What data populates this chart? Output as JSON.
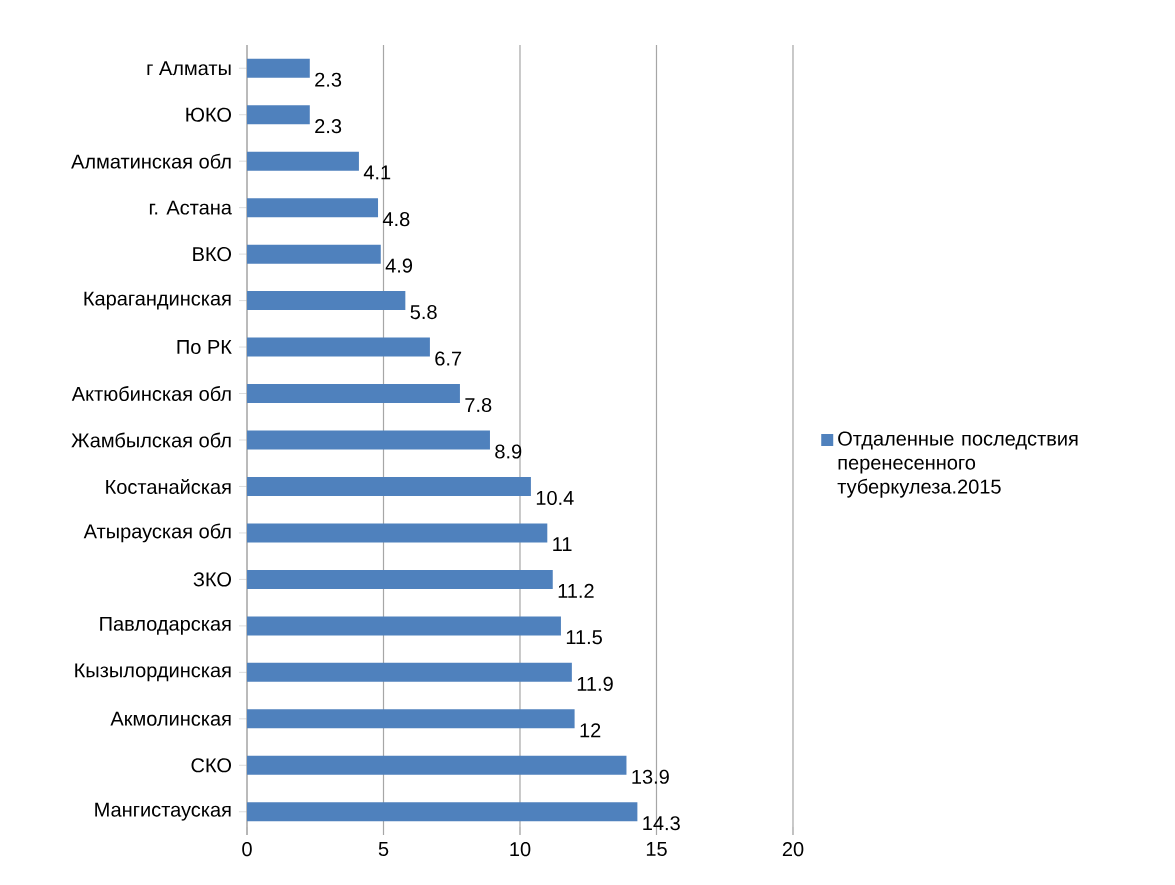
{
  "chart_data": {
    "type": "bar",
    "orientation": "horizontal",
    "categories": [
      "г Алматы",
      "ЮКО",
      "Алматинская обл",
      "г. Астана",
      "ВКО",
      "Карагандинская",
      "По РК",
      "Актюбинская обл",
      "Жамбылская обл",
      "Костанайская",
      "Атырауская обл",
      "ЗКО",
      "Павлодарская",
      "Кызылординская",
      "Акмолинская",
      "СКО",
      "Мангистауская"
    ],
    "series": [
      {
        "name": "Отдаленные последствия перенесенного туберкулеза.2015",
        "color": "#4f81bd",
        "values": [
          2.3,
          2.3,
          4.1,
          4.8,
          4.9,
          5.8,
          6.7,
          7.8,
          8.9,
          10.4,
          11,
          11.2,
          11.5,
          11.9,
          12,
          13.9,
          14.3
        ]
      }
    ],
    "xlim": [
      0,
      20
    ],
    "xticks": [
      0,
      5,
      10,
      15,
      20
    ],
    "grid": "x",
    "legend": "right",
    "data_labels": true
  }
}
